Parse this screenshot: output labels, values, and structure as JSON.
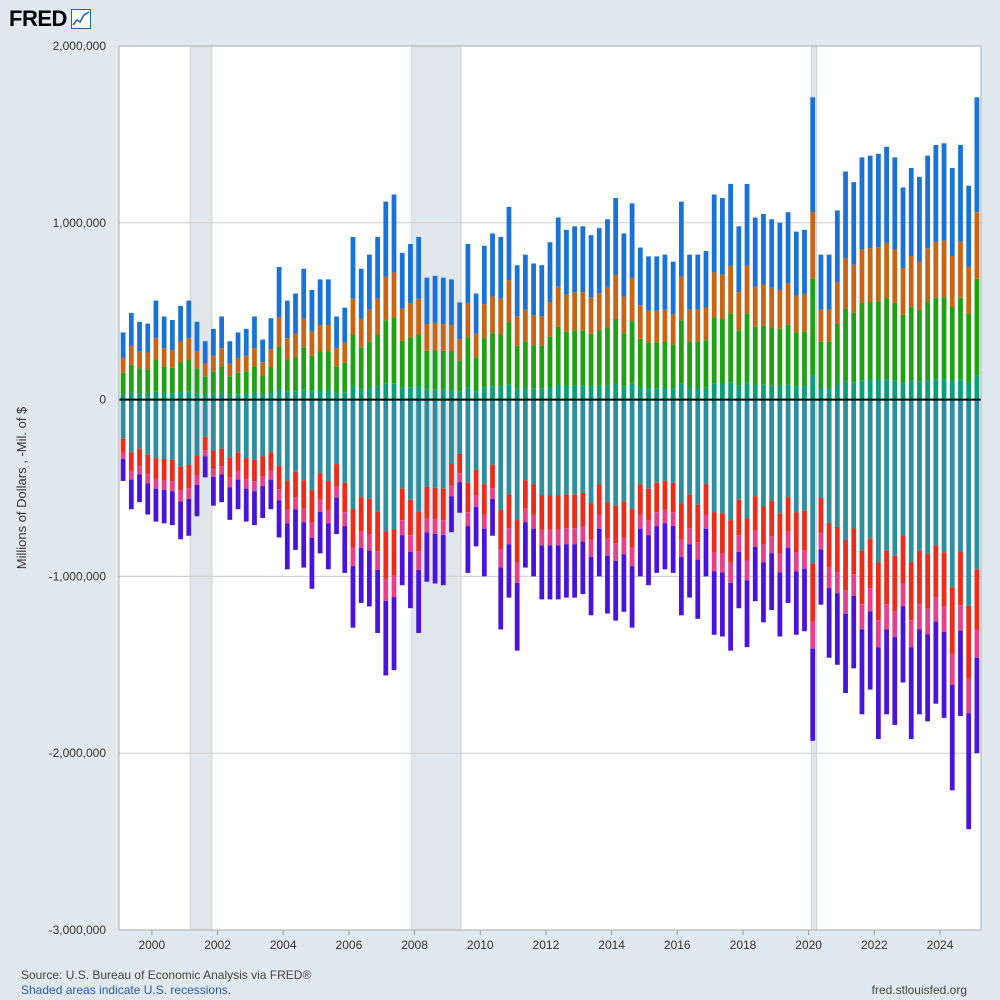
{
  "logo": {
    "text": "FRED"
  },
  "footer": {
    "source": "U.S. Bureau of Economic Analysis via FRED®",
    "source_prefix": "Source: ",
    "recession_note": "Shaded areas indicate U.S. recessions.",
    "site": "fred.stlouisfed.org"
  },
  "colors": {
    "plot_background": "#ffffff",
    "page_background": "#e1e9f0",
    "gridline": "#cccccc",
    "zero_line": "#000000",
    "recession_shade": "#e1e6eb"
  },
  "chart_data": {
    "type": "bar",
    "stacked": true,
    "ylabel": "Millions of Dollars , -Mil. of $",
    "ylim": [
      -3000000,
      2000000
    ],
    "yticks": [
      2000000,
      1000000,
      0,
      -1000000,
      -2000000,
      -3000000
    ],
    "ytick_labels": [
      "2,000,000",
      "1,000,000",
      "0",
      "-1,000,000",
      "-2,000,000",
      "-3,000,000"
    ],
    "xlim": [
      "1999-01-01",
      "2025-04-01"
    ],
    "xtick_labels": [
      "2000",
      "2002",
      "2004",
      "2006",
      "2008",
      "2010",
      "2012",
      "2014",
      "2016",
      "2018",
      "2020",
      "2022",
      "2024"
    ],
    "frequency": "quarterly",
    "recessions": [
      [
        "2001-03-01",
        "2001-11-01"
      ],
      [
        "2007-12-01",
        "2009-06-01"
      ],
      [
        "2020-02-01",
        "2020-04-01"
      ]
    ],
    "legend": "none",
    "grid": true,
    "series_colors": [
      "#08a07a",
      "#1ea112",
      "#c86414",
      "#1872d8",
      "#2c8e9e",
      "#ec2b1b",
      "#e83f8a",
      "#4a12dd"
    ],
    "quarters": [
      "1999Q1",
      "1999Q2",
      "1999Q3",
      "1999Q4",
      "2000Q1",
      "2000Q2",
      "2000Q3",
      "2000Q4",
      "2001Q1",
      "2001Q2",
      "2001Q3",
      "2001Q4",
      "2002Q1",
      "2002Q2",
      "2002Q3",
      "2002Q4",
      "2003Q1",
      "2003Q2",
      "2003Q3",
      "2003Q4",
      "2004Q1",
      "2004Q2",
      "2004Q3",
      "2004Q4",
      "2005Q1",
      "2005Q2",
      "2005Q3",
      "2005Q4",
      "2006Q1",
      "2006Q2",
      "2006Q3",
      "2006Q4",
      "2007Q1",
      "2007Q2",
      "2007Q3",
      "2007Q4",
      "2008Q1",
      "2008Q2",
      "2008Q3",
      "2008Q4",
      "2009Q1",
      "2009Q2",
      "2009Q3",
      "2009Q4",
      "2010Q1",
      "2010Q2",
      "2010Q3",
      "2010Q4",
      "2011Q1",
      "2011Q2",
      "2011Q3",
      "2011Q4",
      "2012Q1",
      "2012Q2",
      "2012Q3",
      "2012Q4",
      "2013Q1",
      "2013Q2",
      "2013Q3",
      "2013Q4",
      "2014Q1",
      "2014Q2",
      "2014Q3",
      "2014Q4",
      "2015Q1",
      "2015Q2",
      "2015Q3",
      "2015Q4",
      "2016Q1",
      "2016Q2",
      "2016Q3",
      "2016Q4",
      "2017Q1",
      "2017Q2",
      "2017Q3",
      "2017Q4",
      "2018Q1",
      "2018Q2",
      "2018Q3",
      "2018Q4",
      "2019Q1",
      "2019Q2",
      "2019Q3",
      "2019Q4",
      "2020Q1",
      "2020Q2",
      "2020Q3",
      "2020Q4",
      "2021Q1",
      "2021Q2",
      "2021Q3",
      "2021Q4",
      "2022Q1",
      "2022Q2",
      "2022Q3",
      "2022Q4",
      "2023Q1",
      "2023Q2",
      "2023Q3",
      "2023Q4",
      "2024Q1",
      "2024Q2",
      "2024Q3",
      "2024Q4",
      "2025Q1"
    ],
    "positive_totals": [
      380000,
      490000,
      440000,
      430000,
      560000,
      470000,
      450000,
      530000,
      560000,
      440000,
      330000,
      400000,
      470000,
      330000,
      380000,
      400000,
      470000,
      340000,
      460000,
      750000,
      560000,
      600000,
      740000,
      620000,
      680000,
      680000,
      470000,
      520000,
      920000,
      740000,
      820000,
      920000,
      1120000,
      1160000,
      830000,
      880000,
      920000,
      690000,
      700000,
      690000,
      680000,
      550000,
      880000,
      600000,
      870000,
      940000,
      920000,
      1090000,
      760000,
      820000,
      770000,
      760000,
      890000,
      1030000,
      960000,
      980000,
      980000,
      930000,
      970000,
      1020000,
      1140000,
      940000,
      1110000,
      860000,
      810000,
      810000,
      820000,
      780000,
      1120000,
      820000,
      820000,
      840000,
      1160000,
      1140000,
      1220000,
      980000,
      1220000,
      1030000,
      1050000,
      1020000,
      1000000,
      1060000,
      950000,
      960000,
      1710000,
      820000,
      820000,
      1070000,
      1290000,
      1230000,
      1370000,
      1380000,
      1390000,
      1430000,
      1370000,
      1200000,
      1310000,
      1260000,
      1380000,
      1440000,
      1450000,
      1310000,
      1440000,
      1210000,
      1710000
    ],
    "negative_totals": [
      -460000,
      -620000,
      -580000,
      -650000,
      -690000,
      -700000,
      -710000,
      -790000,
      -770000,
      -660000,
      -440000,
      -600000,
      -580000,
      -680000,
      -620000,
      -690000,
      -710000,
      -670000,
      -620000,
      -780000,
      -960000,
      -850000,
      -950000,
      -1070000,
      -870000,
      -960000,
      -760000,
      -980000,
      -1290000,
      -1150000,
      -1170000,
      -1320000,
      -1560000,
      -1530000,
      -1050000,
      -1180000,
      -1320000,
      -1030000,
      -1040000,
      -1050000,
      -750000,
      -640000,
      -980000,
      -830000,
      -1000000,
      -770000,
      -1300000,
      -1120000,
      -1420000,
      -950000,
      -1000000,
      -1130000,
      -1130000,
      -1130000,
      -1120000,
      -1120000,
      -1100000,
      -1220000,
      -1000000,
      -1210000,
      -1250000,
      -1200000,
      -1290000,
      -1000000,
      -1050000,
      -980000,
      -960000,
      -980000,
      -1220000,
      -1120000,
      -1240000,
      -1000000,
      -1330000,
      -1340000,
      -1420000,
      -1180000,
      -1400000,
      -1140000,
      -1260000,
      -1190000,
      -1340000,
      -1150000,
      -1330000,
      -1310000,
      -1930000,
      -1160000,
      -1460000,
      -1500000,
      -1660000,
      -1520000,
      -1780000,
      -1640000,
      -1920000,
      -1780000,
      -1840000,
      -1600000,
      -1920000,
      -1780000,
      -1820000,
      -1720000,
      -1800000,
      -2210000,
      -1790000,
      -2430000,
      -2000000
    ]
  }
}
